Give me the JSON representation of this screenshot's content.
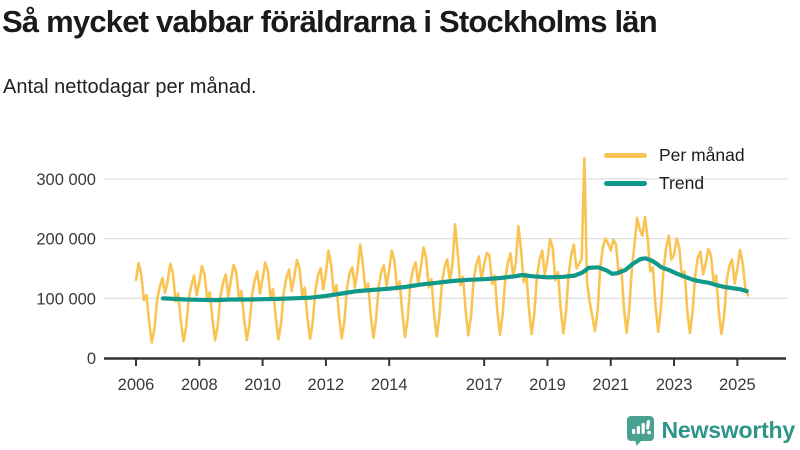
{
  "header": {
    "title": "Så mycket vabbar föräldrarna i Stockholms län",
    "subtitle": "Antal nettodagar per månad."
  },
  "legend": {
    "items": [
      {
        "label": "Per månad",
        "color": "#FAC454"
      },
      {
        "label": "Trend",
        "color": "#10998A"
      }
    ]
  },
  "footer": {
    "brand": "Newsworthy",
    "brand_color": "#2D9689",
    "icon": "bar-chart-speech-bubble-icon",
    "icon_color": "#4AA192"
  },
  "chart_data": {
    "type": "line",
    "title": "Så mycket vabbar föräldrarna i Stockholms län",
    "subtitle": "Antal nettodagar per månad.",
    "ylabel": "Antal nettodagar",
    "xlabel": "",
    "grid": "horizontal",
    "legend_position": "top-right-inside",
    "ylim": [
      0,
      365000
    ],
    "xlim": [
      2005.0,
      2025.6
    ],
    "y_axis": {
      "ticks": [
        {
          "value": 0,
          "label": "0"
        },
        {
          "value": 100000,
          "label": "100 000"
        },
        {
          "value": 200000,
          "label": "200 000"
        },
        {
          "value": 300000,
          "label": "300 000"
        }
      ]
    },
    "x_axis": {
      "ticks": [
        "2006",
        "2008",
        "2010",
        "2012",
        "2014",
        "2017",
        "2019",
        "2021",
        "2023",
        "2025"
      ]
    },
    "x_start_year": 2006,
    "x_step_months": 1,
    "series": [
      {
        "name": "Per månad",
        "color": "#FAC454",
        "values": [
          131000,
          159000,
          139000,
          97000,
          105000,
          60000,
          26000,
          50000,
          97000,
          119000,
          134000,
          109000,
          129000,
          158000,
          142000,
          95000,
          108000,
          62000,
          28000,
          52000,
          100000,
          122000,
          138000,
          105000,
          127000,
          154000,
          140000,
          98000,
          110000,
          64000,
          30000,
          55000,
          103000,
          125000,
          140000,
          103000,
          130000,
          156000,
          144000,
          100000,
          112000,
          65000,
          30000,
          56000,
          106000,
          130000,
          145000,
          108000,
          133000,
          160000,
          146000,
          102000,
          115000,
          67000,
          31000,
          58000,
          110000,
          134000,
          148000,
          112000,
          136000,
          164000,
          150000,
          105000,
          118000,
          68000,
          32000,
          60000,
          113000,
          138000,
          150000,
          115000,
          142000,
          180000,
          155000,
          108000,
          122000,
          70000,
          33000,
          62000,
          117000,
          142000,
          152000,
          118000,
          146000,
          190000,
          158000,
          112000,
          125000,
          72000,
          34000,
          64000,
          120000,
          145000,
          155000,
          120000,
          148000,
          180000,
          162000,
          115000,
          128000,
          74000,
          35000,
          66000,
          123000,
          148000,
          160000,
          124000,
          152000,
          185000,
          168000,
          118000,
          132000,
          76000,
          36000,
          68000,
          127000,
          152000,
          165000,
          128000,
          158000,
          224000,
          175000,
          122000,
          136000,
          78000,
          38000,
          70000,
          130000,
          156000,
          170000,
          132000,
          156000,
          176000,
          172000,
          124000,
          138000,
          80000,
          39000,
          72000,
          133000,
          160000,
          175000,
          136000,
          160000,
          221000,
          180000,
          127000,
          141000,
          82000,
          40000,
          74000,
          136000,
          164000,
          180000,
          140000,
          164000,
          199000,
          184000,
          130000,
          144000,
          84000,
          41000,
          76000,
          140000,
          172000,
          190000,
          150000,
          158000,
          166000,
          335000,
          128000,
          95000,
          70000,
          45000,
          78000,
          150000,
          185000,
          200000,
          192000,
          180000,
          198000,
          190000,
          140000,
          150000,
          85000,
          42000,
          80000,
          150000,
          190000,
          235000,
          215000,
          205000,
          236000,
          200000,
          145000,
          152000,
          86000,
          44000,
          82000,
          148000,
          185000,
          205000,
          165000,
          172000,
          200000,
          185000,
          135000,
          145000,
          80000,
          42000,
          76000,
          138000,
          168000,
          178000,
          140000,
          158000,
          182000,
          172000,
          128000,
          138000,
          76000,
          40000,
          72000,
          130000,
          155000,
          165000,
          125000,
          150000,
          181000,
          160000,
          118000,
          105000
        ]
      },
      {
        "name": "Trend",
        "color": "#10998A",
        "points": [
          [
            2006.85,
            100000
          ],
          [
            2007.2,
            99000
          ],
          [
            2007.6,
            98000
          ],
          [
            2008.0,
            97500
          ],
          [
            2008.5,
            97000
          ],
          [
            2009.0,
            98000
          ],
          [
            2009.5,
            98000
          ],
          [
            2010.0,
            98500
          ],
          [
            2010.5,
            99000
          ],
          [
            2011.0,
            100000
          ],
          [
            2011.5,
            101000
          ],
          [
            2012.0,
            104000
          ],
          [
            2012.5,
            108000
          ],
          [
            2013.0,
            112000
          ],
          [
            2013.5,
            114000
          ],
          [
            2014.0,
            116000
          ],
          [
            2014.5,
            119000
          ],
          [
            2015.0,
            123000
          ],
          [
            2015.5,
            126000
          ],
          [
            2016.0,
            129000
          ],
          [
            2016.5,
            131000
          ],
          [
            2017.0,
            132000
          ],
          [
            2017.5,
            134000
          ],
          [
            2018.0,
            137000
          ],
          [
            2018.2,
            139000
          ],
          [
            2018.5,
            137000
          ],
          [
            2019.0,
            135000
          ],
          [
            2019.5,
            136000
          ],
          [
            2019.85,
            138000
          ],
          [
            2020.1,
            143000
          ],
          [
            2020.3,
            151000
          ],
          [
            2020.6,
            152000
          ],
          [
            2020.85,
            147000
          ],
          [
            2021.05,
            141000
          ],
          [
            2021.2,
            142000
          ],
          [
            2021.45,
            147000
          ],
          [
            2021.7,
            158000
          ],
          [
            2021.95,
            166000
          ],
          [
            2022.1,
            167000
          ],
          [
            2022.3,
            163000
          ],
          [
            2022.45,
            158000
          ],
          [
            2022.6,
            152000
          ],
          [
            2022.85,
            147000
          ],
          [
            2023.1,
            141000
          ],
          [
            2023.35,
            136000
          ],
          [
            2023.6,
            131000
          ],
          [
            2023.85,
            128000
          ],
          [
            2024.1,
            126000
          ],
          [
            2024.35,
            122000
          ],
          [
            2024.6,
            119000
          ],
          [
            2024.85,
            117000
          ],
          [
            2025.1,
            115000
          ],
          [
            2025.3,
            112000
          ]
        ]
      }
    ]
  }
}
